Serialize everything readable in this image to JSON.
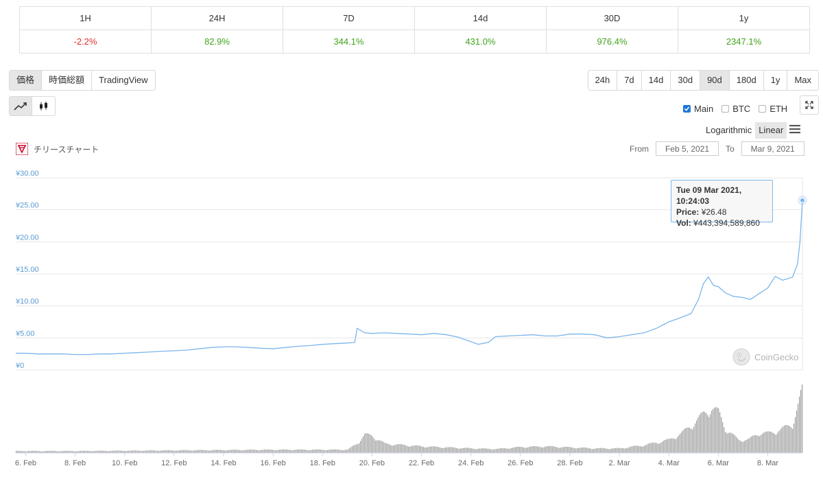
{
  "change_table": {
    "headers": [
      "1H",
      "24H",
      "7D",
      "14d",
      "30D",
      "1y"
    ],
    "values": [
      "-2.2%",
      "82.9%",
      "344.1%",
      "431.0%",
      "976.4%",
      "2347.1%"
    ]
  },
  "view_tabs": [
    "価格",
    "時価総額",
    "TradingView"
  ],
  "range_buttons": [
    "24h",
    "7d",
    "14d",
    "30d",
    "90d",
    "180d",
    "1y",
    "Max"
  ],
  "series_toggles": {
    "main": "Main",
    "btc": "BTC",
    "eth": "ETH"
  },
  "scale": {
    "log": "Logarithmic",
    "linear": "Linear"
  },
  "chart_title": "チリースチャート",
  "date_range": {
    "from_label": "From",
    "from": "Feb 5, 2021",
    "to_label": "To",
    "to": "Mar 9, 2021"
  },
  "tooltip": {
    "date": "Tue 09 Mar 2021, 10:24:03",
    "price_label": "Price:",
    "price": "¥26.48",
    "vol_label": "Vol:",
    "vol": "¥443,394,589,860"
  },
  "watermark": "CoinGecko",
  "colors": {
    "line": "#7cb5ec",
    "volume": "#9a9a9a",
    "negative": "#e0312c",
    "positive": "#3fa41a",
    "axis_label": "#5b9bd5"
  },
  "chart_data": {
    "type": "line",
    "ylim": [
      0,
      30
    ],
    "y_ticks": [
      "¥30.00",
      "¥25.00",
      "¥20.00",
      "¥15.00",
      "¥10.00",
      "¥5.00",
      "¥0"
    ],
    "x_ticks": [
      "6. Feb",
      "8. Feb",
      "10. Feb",
      "12. Feb",
      "14. Feb",
      "16. Feb",
      "18. Feb",
      "20. Feb",
      "22. Feb",
      "24. Feb",
      "26. Feb",
      "28. Feb",
      "2. Mar",
      "4. Mar",
      "6. Mar",
      "8. Mar"
    ],
    "x_range_days": [
      5.6,
      37.4
    ],
    "price_series": [
      [
        5.6,
        2.6
      ],
      [
        6.0,
        2.6
      ],
      [
        6.5,
        2.5
      ],
      [
        7.0,
        2.5
      ],
      [
        7.5,
        2.5
      ],
      [
        8.0,
        2.4
      ],
      [
        8.5,
        2.4
      ],
      [
        9.0,
        2.5
      ],
      [
        9.5,
        2.5
      ],
      [
        10.0,
        2.6
      ],
      [
        10.5,
        2.7
      ],
      [
        11.0,
        2.8
      ],
      [
        11.5,
        2.9
      ],
      [
        12.0,
        3.0
      ],
      [
        12.5,
        3.1
      ],
      [
        13.0,
        3.3
      ],
      [
        13.5,
        3.5
      ],
      [
        14.0,
        3.6
      ],
      [
        14.5,
        3.6
      ],
      [
        15.0,
        3.5
      ],
      [
        15.5,
        3.4
      ],
      [
        16.0,
        3.3
      ],
      [
        16.5,
        3.5
      ],
      [
        17.0,
        3.7
      ],
      [
        17.5,
        3.8
      ],
      [
        18.0,
        4.0
      ],
      [
        18.5,
        4.1
      ],
      [
        19.0,
        4.2
      ],
      [
        19.3,
        4.3
      ],
      [
        19.4,
        6.5
      ],
      [
        19.7,
        5.8
      ],
      [
        20.0,
        5.7
      ],
      [
        20.5,
        5.8
      ],
      [
        21.0,
        5.7
      ],
      [
        21.5,
        5.6
      ],
      [
        22.0,
        5.5
      ],
      [
        22.5,
        5.7
      ],
      [
        23.0,
        5.5
      ],
      [
        23.5,
        5.1
      ],
      [
        24.0,
        4.4
      ],
      [
        24.3,
        4.0
      ],
      [
        24.7,
        4.3
      ],
      [
        25.0,
        5.2
      ],
      [
        25.5,
        5.3
      ],
      [
        26.0,
        5.4
      ],
      [
        26.5,
        5.5
      ],
      [
        27.0,
        5.3
      ],
      [
        27.5,
        5.3
      ],
      [
        28.0,
        5.6
      ],
      [
        28.5,
        5.6
      ],
      [
        29.0,
        5.5
      ],
      [
        29.5,
        5.0
      ],
      [
        30.0,
        5.2
      ],
      [
        30.5,
        5.5
      ],
      [
        31.0,
        5.8
      ],
      [
        31.5,
        6.5
      ],
      [
        32.0,
        7.5
      ],
      [
        32.5,
        8.2
      ],
      [
        32.9,
        8.8
      ],
      [
        33.2,
        11.0
      ],
      [
        33.4,
        13.5
      ],
      [
        33.6,
        14.5
      ],
      [
        33.8,
        13.2
      ],
      [
        34.0,
        13.0
      ],
      [
        34.3,
        12.0
      ],
      [
        34.6,
        11.5
      ],
      [
        35.0,
        11.3
      ],
      [
        35.3,
        11.0
      ],
      [
        35.6,
        11.8
      ],
      [
        36.0,
        12.8
      ],
      [
        36.3,
        14.6
      ],
      [
        36.6,
        14.0
      ],
      [
        37.0,
        14.5
      ],
      [
        37.2,
        16.5
      ],
      [
        37.3,
        20.0
      ],
      [
        37.4,
        26.48
      ]
    ],
    "volume_series": [
      [
        5.6,
        0.03
      ],
      [
        8.0,
        0.03
      ],
      [
        12.0,
        0.04
      ],
      [
        16.0,
        0.05
      ],
      [
        19.0,
        0.05
      ],
      [
        19.4,
        0.15
      ],
      [
        19.7,
        0.28
      ],
      [
        20.0,
        0.26
      ],
      [
        20.5,
        0.14
      ],
      [
        22.0,
        0.1
      ],
      [
        24.0,
        0.07
      ],
      [
        25.0,
        0.06
      ],
      [
        26.0,
        0.09
      ],
      [
        27.0,
        0.1
      ],
      [
        29.0,
        0.07
      ],
      [
        30.0,
        0.07
      ],
      [
        31.0,
        0.12
      ],
      [
        32.0,
        0.2
      ],
      [
        32.5,
        0.3
      ],
      [
        33.0,
        0.45
      ],
      [
        33.4,
        0.6
      ],
      [
        33.7,
        0.68
      ],
      [
        34.0,
        0.62
      ],
      [
        34.3,
        0.35
      ],
      [
        34.8,
        0.2
      ],
      [
        35.2,
        0.2
      ],
      [
        35.6,
        0.3
      ],
      [
        36.0,
        0.3
      ],
      [
        36.5,
        0.35
      ],
      [
        37.0,
        0.45
      ],
      [
        37.2,
        0.7
      ],
      [
        37.4,
        1.0
      ]
    ],
    "legend": "none",
    "grid": true
  }
}
